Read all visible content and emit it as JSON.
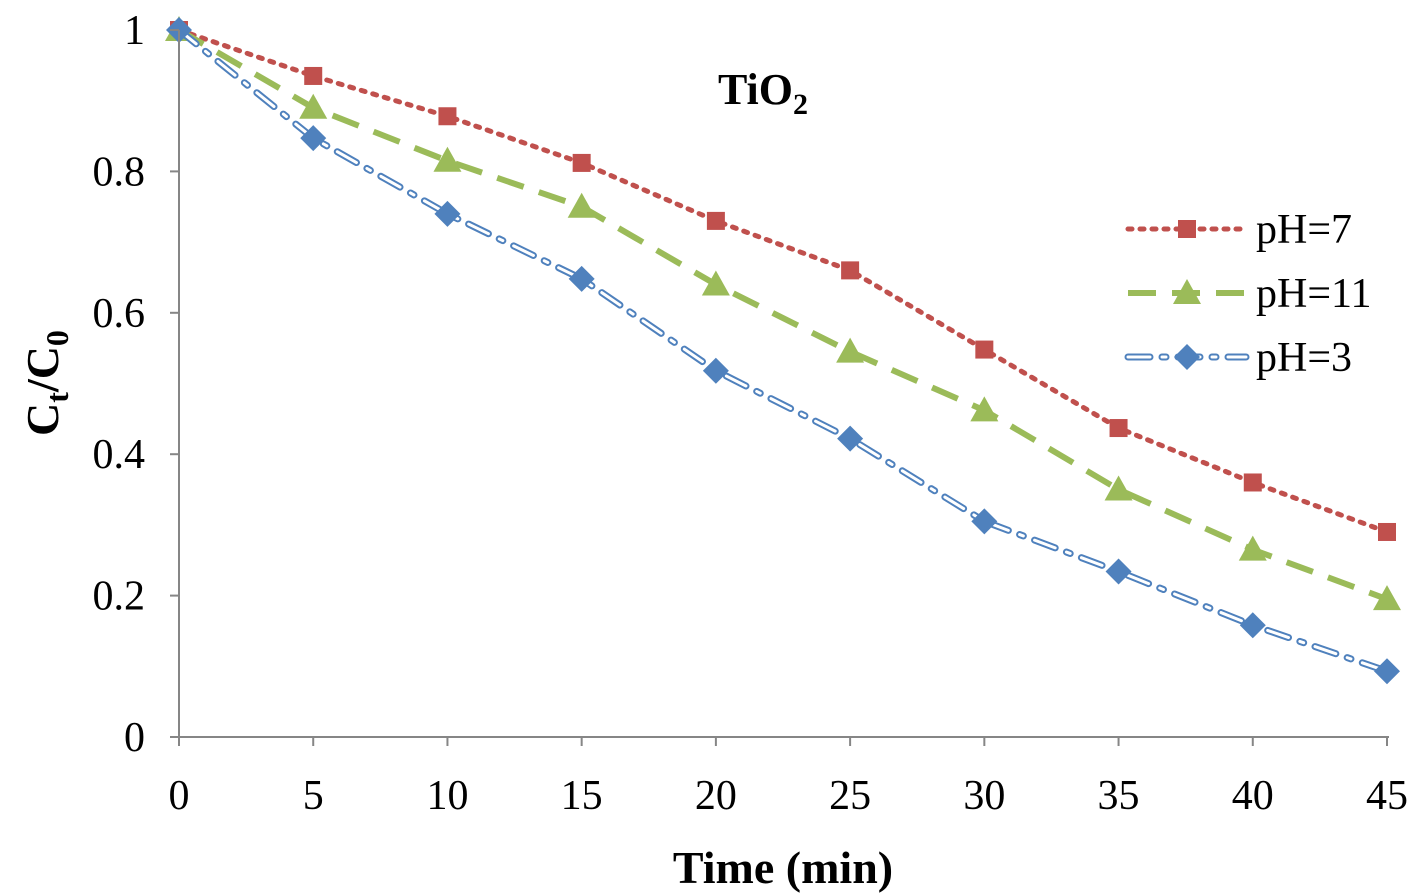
{
  "chart_data": {
    "type": "line",
    "title": "TiO",
    "title_subscript": "2",
    "xlabel": "Time (min)",
    "ylabel_main_1": "C",
    "ylabel_sub_1": "t",
    "ylabel_main_2": "/C",
    "ylabel_sub_2": "0",
    "x": [
      0,
      5,
      10,
      15,
      20,
      25,
      30,
      35,
      40,
      45
    ],
    "xlim": [
      0,
      45
    ],
    "ylim": [
      0,
      1
    ],
    "xticks": [
      "0",
      "5",
      "10",
      "15",
      "20",
      "25",
      "30",
      "35",
      "40",
      "45"
    ],
    "yticks": [
      "0",
      "0.2",
      "0.4",
      "0.6",
      "0.8",
      "1"
    ],
    "grid": false,
    "legend_position": "right",
    "series": [
      {
        "name": "pH=7",
        "values": [
          1.0,
          0.935,
          0.878,
          0.812,
          0.73,
          0.66,
          0.548,
          0.437,
          0.36,
          0.29
        ],
        "color": "#C0504D",
        "marker": "square",
        "line": "dotted"
      },
      {
        "name": "pH=11",
        "values": [
          1.0,
          0.89,
          0.815,
          0.75,
          0.64,
          0.545,
          0.462,
          0.35,
          0.265,
          0.195
        ],
        "color": "#9BBB59",
        "marker": "triangle",
        "line": "dashed"
      },
      {
        "name": "pH=3",
        "values": [
          1.0,
          0.847,
          0.74,
          0.648,
          0.518,
          0.422,
          0.305,
          0.234,
          0.158,
          0.093
        ],
        "color": "#4F81BD",
        "marker": "diamond",
        "line": "dash-dot"
      }
    ]
  }
}
